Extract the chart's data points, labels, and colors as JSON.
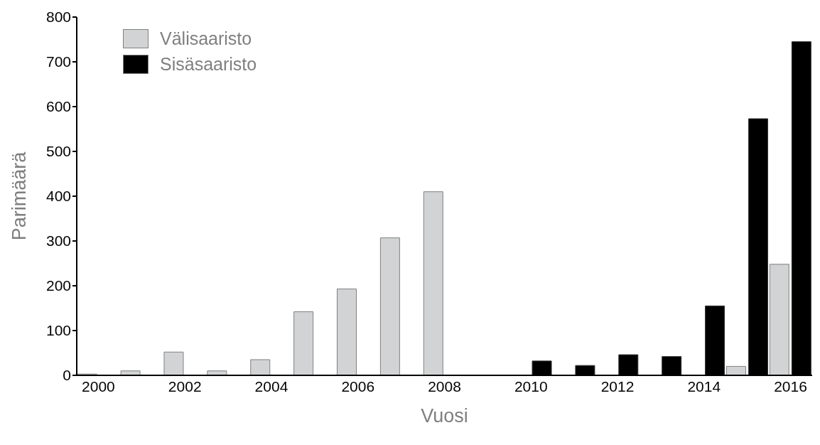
{
  "chart_data": {
    "type": "bar",
    "xlabel": "Vuosi",
    "ylabel": "Parimäärä",
    "categories": [
      "2000",
      null,
      "2002",
      null,
      "2004",
      null,
      "2006",
      null,
      "2008",
      null,
      "2010",
      null,
      "2012",
      null,
      "2014",
      null,
      "2016"
    ],
    "series": [
      {
        "name": "Välisaaristo",
        "color": "#d1d3d4",
        "values": [
          3,
          10,
          52,
          10,
          35,
          142,
          193,
          307,
          410,
          null,
          null,
          null,
          null,
          null,
          null,
          20,
          248
        ]
      },
      {
        "name": "Sisäsaaristo",
        "color": "#000000",
        "values": [
          null,
          null,
          null,
          null,
          null,
          null,
          null,
          null,
          null,
          null,
          32,
          22,
          46,
          42,
          155,
          573,
          745
        ]
      }
    ],
    "ylim": [
      0,
      800
    ],
    "yticks": [
      0,
      100,
      200,
      300,
      400,
      500,
      600,
      700,
      800
    ],
    "grid": false,
    "legend": "top left"
  }
}
